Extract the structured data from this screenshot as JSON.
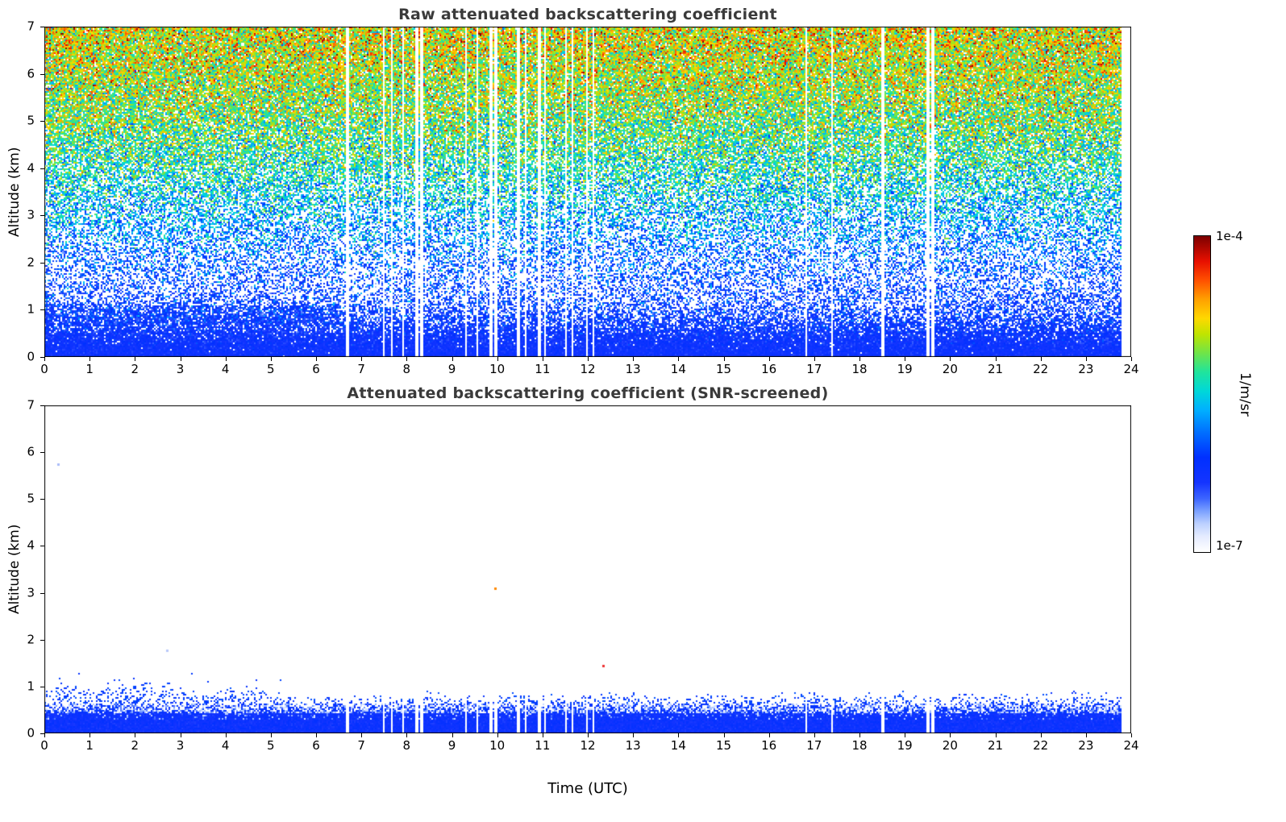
{
  "figure": {
    "background": "#ffffff"
  },
  "colorbar": {
    "top_label": "1e-4",
    "bottom_label": "1e-7",
    "unit_label": "1/m/sr",
    "colormap_stops": [
      [
        0.0,
        "#ffffff"
      ],
      [
        0.05,
        "#e4ebff"
      ],
      [
        0.09,
        "#bcd0ff"
      ],
      [
        0.13,
        "#7aa0ff"
      ],
      [
        0.17,
        "#3c64ff"
      ],
      [
        0.22,
        "#1434ff"
      ],
      [
        0.3,
        "#0030ff"
      ],
      [
        0.38,
        "#0070ff"
      ],
      [
        0.45,
        "#00b0ff"
      ],
      [
        0.51,
        "#00d8d8"
      ],
      [
        0.57,
        "#20e49c"
      ],
      [
        0.63,
        "#70e448"
      ],
      [
        0.69,
        "#c0e400"
      ],
      [
        0.74,
        "#ffd800"
      ],
      [
        0.8,
        "#ffa000"
      ],
      [
        0.86,
        "#ff5000"
      ],
      [
        0.92,
        "#e81000"
      ],
      [
        1.0,
        "#7c0000"
      ]
    ]
  },
  "chart_data": [
    {
      "type": "heatmap",
      "title": "Raw attenuated backscattering coefficient",
      "xlabel": "",
      "ylabel": "Altitude (km)",
      "xlim": [
        0,
        24
      ],
      "ylim": [
        0,
        7
      ],
      "xticks": [
        0,
        1,
        2,
        3,
        4,
        5,
        6,
        7,
        8,
        9,
        10,
        11,
        12,
        13,
        14,
        15,
        16,
        17,
        18,
        19,
        20,
        21,
        22,
        23,
        24
      ],
      "yticks": [
        0,
        1,
        2,
        3,
        4,
        5,
        6,
        7
      ],
      "value_range": {
        "min": "1e-7",
        "max": "1e-4",
        "units": "1/m/sr"
      },
      "time_coverage_utc": [
        0,
        23.8
      ],
      "gap_times_utc": [
        [
          6.7,
          0.05
        ],
        [
          7.5,
          0.05
        ],
        [
          7.68,
          0.04
        ],
        [
          7.93,
          0.05
        ],
        [
          8.22,
          0.05
        ],
        [
          8.33,
          0.06
        ],
        [
          9.32,
          0.04
        ],
        [
          9.57,
          0.04
        ],
        [
          9.87,
          0.05
        ],
        [
          9.97,
          0.06
        ],
        [
          10.47,
          0.05
        ],
        [
          10.62,
          0.04
        ],
        [
          10.93,
          0.06
        ],
        [
          11.05,
          0.05
        ],
        [
          11.52,
          0.05
        ],
        [
          11.65,
          0.04
        ],
        [
          11.98,
          0.06
        ],
        [
          12.12,
          0.04
        ],
        [
          16.82,
          0.06
        ],
        [
          17.38,
          0.03
        ],
        [
          18.52,
          0.05
        ],
        [
          19.52,
          0.09
        ],
        [
          19.62,
          0.04
        ]
      ],
      "noise_profile": {
        "mean_level": [
          [
            0,
            0.245
          ],
          [
            0.4,
            0.25
          ],
          [
            0.8,
            0.27
          ],
          [
            1.2,
            0.285
          ],
          [
            1.6,
            0.3
          ],
          [
            2,
            0.335
          ],
          [
            2.5,
            0.39
          ],
          [
            3,
            0.445
          ],
          [
            3.5,
            0.5
          ],
          [
            4,
            0.545
          ],
          [
            4.5,
            0.585
          ],
          [
            5,
            0.62
          ],
          [
            5.5,
            0.65
          ],
          [
            6,
            0.675
          ],
          [
            6.5,
            0.7
          ],
          [
            7,
            0.72
          ]
        ],
        "sigma": [
          [
            0,
            0.02
          ],
          [
            0.4,
            0.04
          ],
          [
            0.8,
            0.07
          ],
          [
            1.5,
            0.09
          ],
          [
            2.5,
            0.105
          ],
          [
            4,
            0.115
          ],
          [
            7,
            0.125
          ]
        ],
        "white_fraction": [
          [
            0,
            0
          ],
          [
            0.3,
            0.02
          ],
          [
            0.5,
            0.08
          ],
          [
            0.7,
            0.22
          ],
          [
            0.9,
            0.38
          ],
          [
            1.2,
            0.52
          ],
          [
            1.6,
            0.6
          ],
          [
            2,
            0.58
          ],
          [
            2.5,
            0.53
          ],
          [
            3,
            0.47
          ],
          [
            3.5,
            0.38
          ],
          [
            4,
            0.29
          ],
          [
            4.5,
            0.21
          ],
          [
            5,
            0.15
          ],
          [
            5.5,
            0.11
          ],
          [
            6,
            0.08
          ],
          [
            6.5,
            0.06
          ],
          [
            7,
            0.05
          ]
        ]
      },
      "boundary_layer": {
        "t_max": 6.5,
        "h_range": [
          0.68,
          1.08
        ],
        "white_factor": 0.45
      }
    },
    {
      "type": "heatmap",
      "title": "Attenuated backscattering coefficient (SNR-screened)",
      "xlabel": "Time (UTC)",
      "ylabel": "Altitude (km)",
      "xlim": [
        0,
        24
      ],
      "ylim": [
        0,
        7
      ],
      "xticks": [
        0,
        1,
        2,
        3,
        4,
        5,
        6,
        7,
        8,
        9,
        10,
        11,
        12,
        13,
        14,
        15,
        16,
        17,
        18,
        19,
        20,
        21,
        22,
        23,
        24
      ],
      "yticks": [
        0,
        1,
        2,
        3,
        4,
        5,
        6,
        7
      ],
      "value_range": {
        "min": "1e-7",
        "max": "1e-4",
        "units": "1/m/sr"
      },
      "time_coverage_utc": [
        0,
        23.8
      ],
      "gap_times_utc": [
        [
          6.7,
          0.05
        ],
        [
          7.5,
          0.05
        ],
        [
          7.68,
          0.04
        ],
        [
          7.93,
          0.05
        ],
        [
          8.22,
          0.05
        ],
        [
          8.33,
          0.06
        ],
        [
          9.32,
          0.04
        ],
        [
          9.57,
          0.04
        ],
        [
          9.87,
          0.05
        ],
        [
          9.97,
          0.06
        ],
        [
          10.47,
          0.05
        ],
        [
          10.62,
          0.04
        ],
        [
          10.93,
          0.06
        ],
        [
          11.05,
          0.05
        ],
        [
          11.52,
          0.05
        ],
        [
          11.65,
          0.04
        ],
        [
          11.98,
          0.06
        ],
        [
          12.12,
          0.04
        ],
        [
          16.82,
          0.06
        ],
        [
          17.38,
          0.03
        ],
        [
          18.52,
          0.05
        ],
        [
          19.52,
          0.09
        ],
        [
          19.62,
          0.04
        ]
      ],
      "aerosol_band_top_km": [
        [
          0,
          1.0
        ],
        [
          1,
          1.0
        ],
        [
          2,
          1.08
        ],
        [
          3,
          1.02
        ],
        [
          4,
          0.97
        ],
        [
          5,
          0.88
        ],
        [
          5.5,
          0.84
        ],
        [
          6,
          0.82
        ],
        [
          8,
          0.85
        ],
        [
          10,
          0.88
        ],
        [
          12,
          0.85
        ],
        [
          14,
          0.82
        ],
        [
          16,
          0.85
        ],
        [
          18,
          0.88
        ],
        [
          20,
          0.85
        ],
        [
          22,
          0.88
        ],
        [
          23.8,
          0.9
        ]
      ],
      "artifacts": [
        {
          "t": 9.95,
          "h": 3.1,
          "color": "#ff8800"
        },
        {
          "t": 12.34,
          "h": 1.45,
          "color": "#ee3333"
        },
        {
          "t": 0.3,
          "h": 5.75,
          "color": "#aabcf8"
        },
        {
          "t": 2.7,
          "h": 1.78,
          "color": "#b8c8fa"
        }
      ]
    }
  ]
}
